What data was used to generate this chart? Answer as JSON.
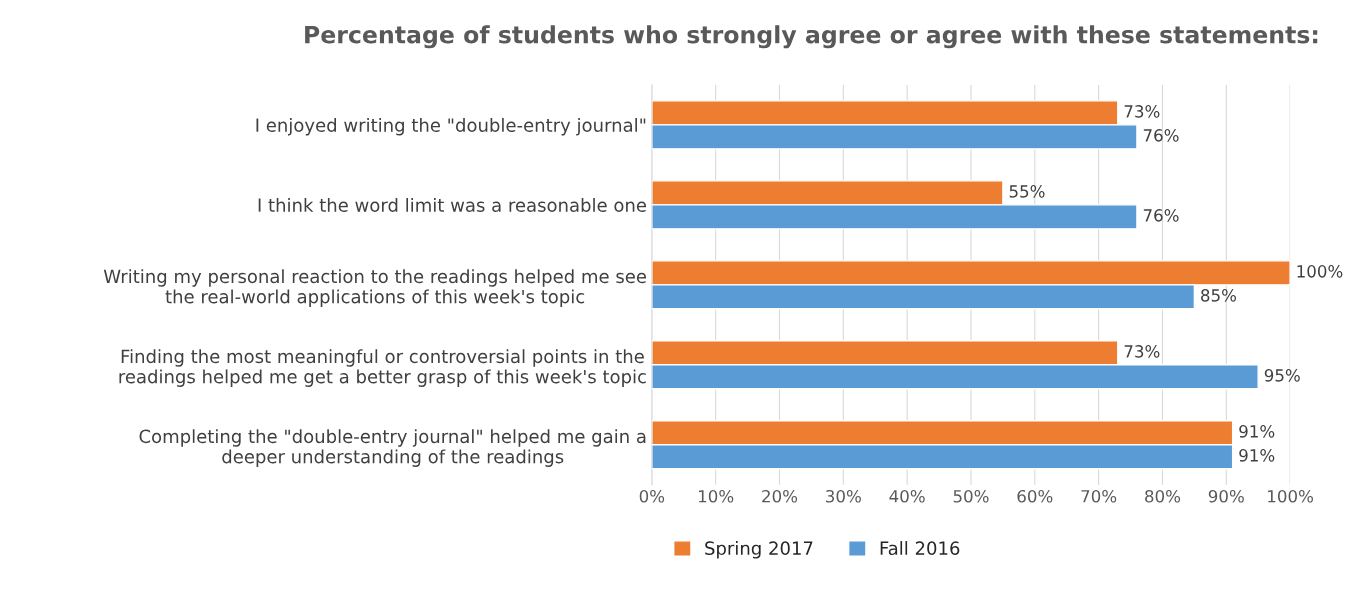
{
  "chart_data": {
    "type": "bar",
    "orientation": "horizontal",
    "title": "Percentage of students who strongly agree or agree with these statements:",
    "categories": [
      "I enjoyed writing the \"double-entry journal\"",
      "I think the word limit was a reasonable one",
      "Writing my personal reaction to the readings helped me see\nthe real-world applications of this week's topic",
      "Finding the most meaningful or controversial points in the\nreadings helped me get a better grasp of this week's topic",
      "Completing the \"double-entry journal\" helped me gain a\ndeeper understanding of the readings"
    ],
    "series": [
      {
        "name": "Spring 2017",
        "color": "#ed7d31",
        "values": [
          73,
          55,
          100,
          73,
          91
        ],
        "value_labels": [
          "73%",
          "55%",
          "100%",
          "73%",
          "91%"
        ]
      },
      {
        "name": "Fall 2016",
        "color": "#5b9bd5",
        "values": [
          76,
          76,
          85,
          95,
          91
        ],
        "value_labels": [
          "76%",
          "76%",
          "85%",
          "95%",
          "91%"
        ]
      }
    ],
    "xlim": [
      0,
      100
    ],
    "xticks": [
      {
        "value": 0,
        "label": "0%"
      },
      {
        "value": 10,
        "label": "10%"
      },
      {
        "value": 20,
        "label": "20%"
      },
      {
        "value": 30,
        "label": "30%"
      },
      {
        "value": 40,
        "label": "40%"
      },
      {
        "value": 50,
        "label": "50%"
      },
      {
        "value": 60,
        "label": "60%"
      },
      {
        "value": 70,
        "label": "70%"
      },
      {
        "value": 80,
        "label": "80%"
      },
      {
        "value": 90,
        "label": "90%"
      },
      {
        "value": 100,
        "label": "100%"
      }
    ],
    "grid": "x",
    "legend": "bottom"
  }
}
